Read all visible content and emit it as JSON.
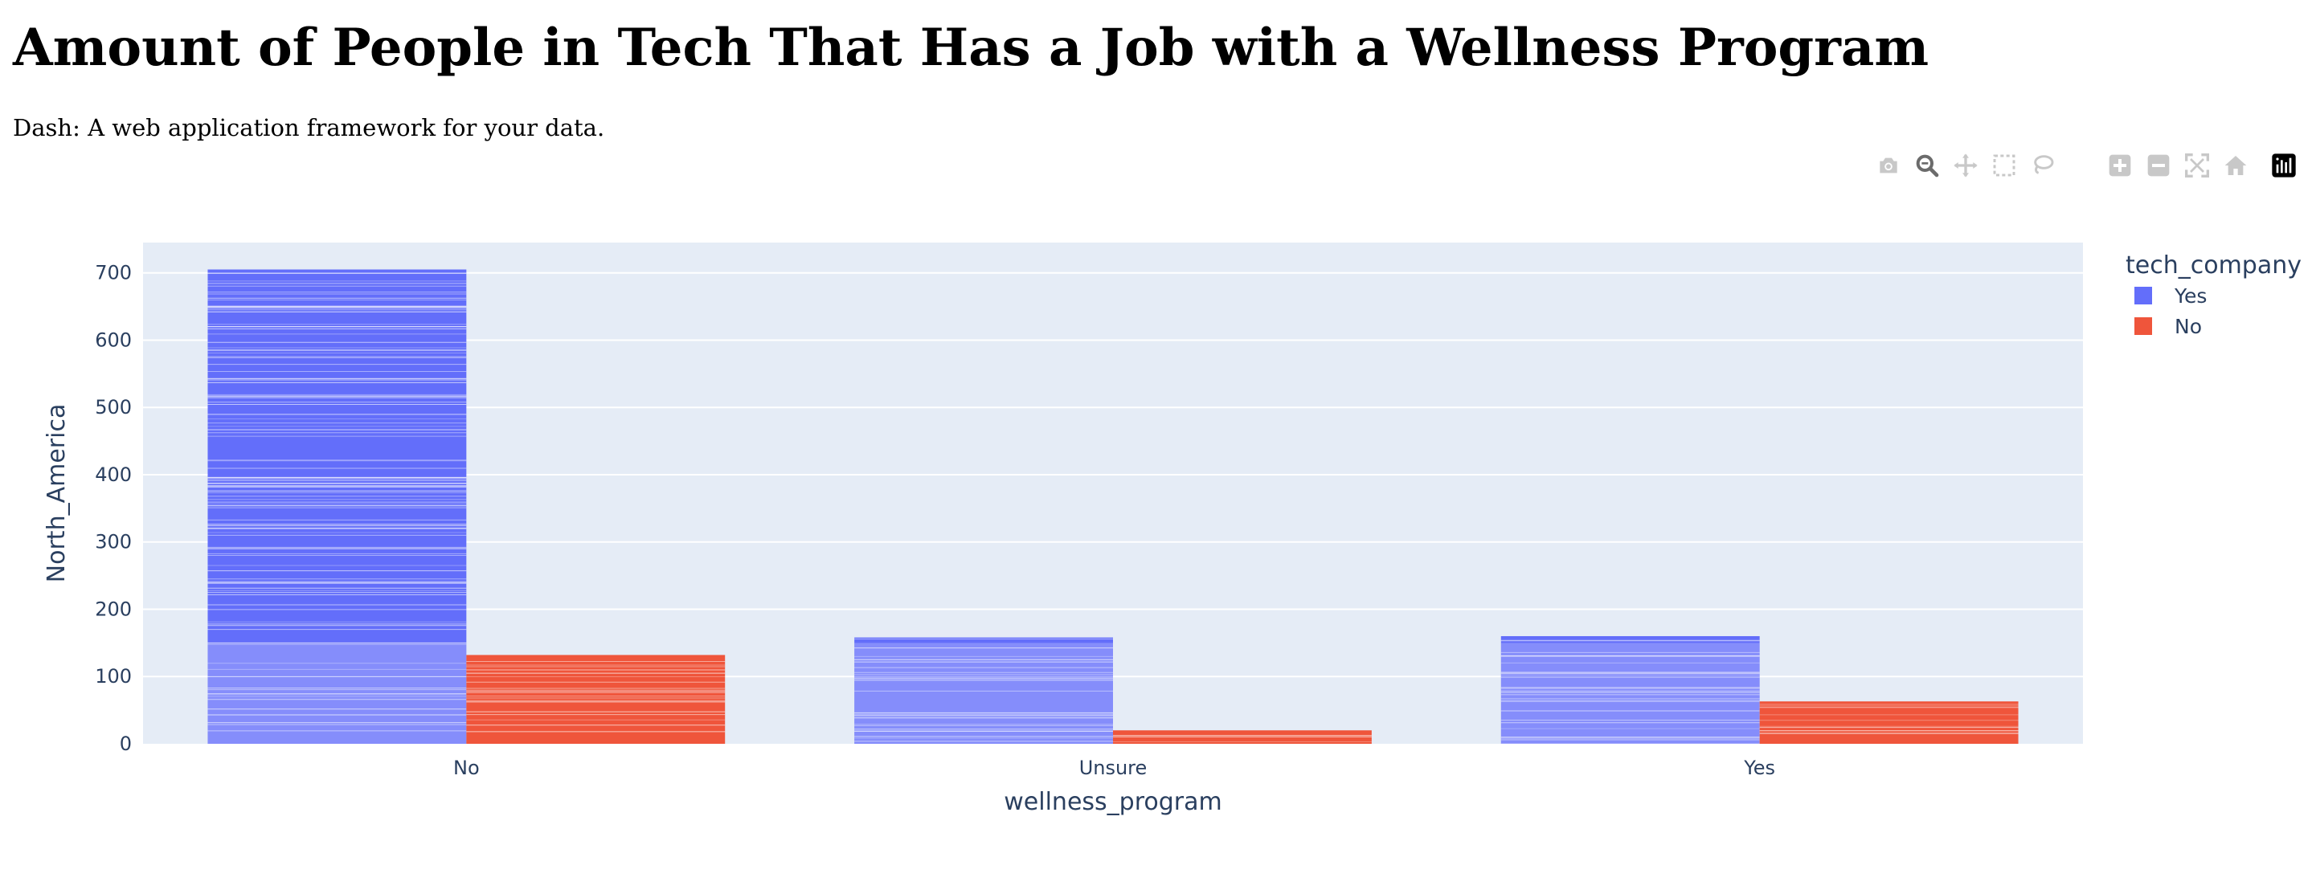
{
  "page": {
    "title": "Amount of People in Tech That Has a Job with a Wellness Program",
    "subtitle": "Dash: A web application framework for your data."
  },
  "modebar": {
    "icons": [
      "camera-icon",
      "zoom-icon",
      "pan-icon",
      "box-select-icon",
      "lasso-select-icon",
      "zoom-in-icon",
      "zoom-out-icon",
      "autoscale-icon",
      "reset-axes-icon",
      "plotly-logo-icon"
    ]
  },
  "chart_data": {
    "type": "bar",
    "barmode": "group",
    "categories": [
      "No",
      "Unsure",
      "Yes"
    ],
    "series": [
      {
        "name": "Yes",
        "color": "#636efa",
        "values": [
          705,
          158,
          160
        ]
      },
      {
        "name": "No",
        "color": "#ef553b",
        "values": [
          132,
          20,
          63
        ]
      }
    ],
    "xlabel": "wellness_program",
    "ylabel": "North_America",
    "ylim": [
      0,
      745
    ],
    "yticks": [
      0,
      100,
      200,
      300,
      400,
      500,
      600,
      700
    ],
    "legend": {
      "title": "tech_company",
      "position": "top-right"
    },
    "plot_bgcolor": "#e5ecf6",
    "grid": true,
    "stacked_segments": true
  }
}
